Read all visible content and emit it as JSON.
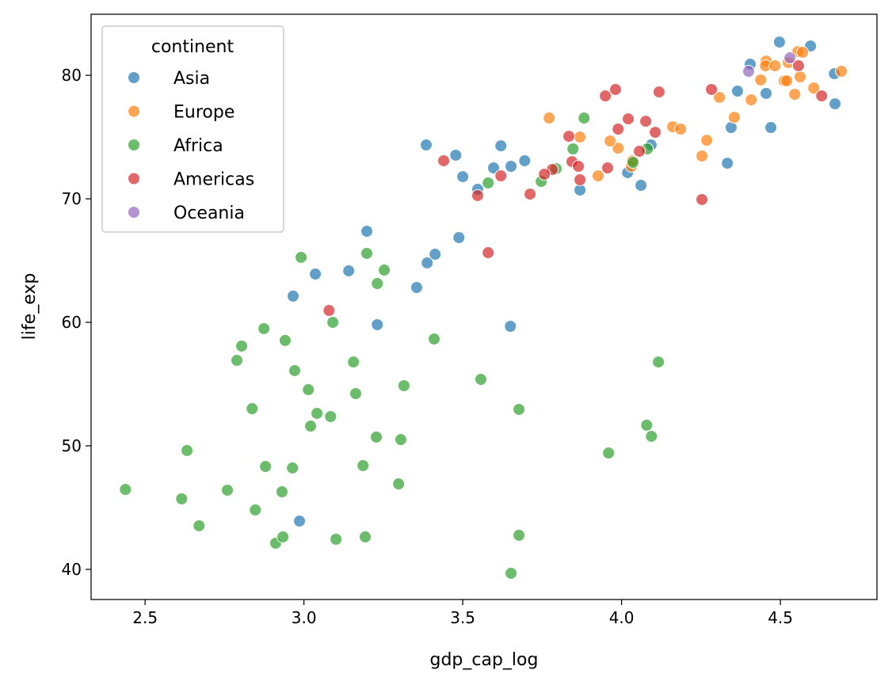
{
  "chart_data": {
    "type": "scatter",
    "xlabel": "gdp_cap_log",
    "ylabel": "life_exp",
    "xlim": [
      2.33,
      4.804
    ],
    "ylim": [
      37.56,
      84.94
    ],
    "xticks": [
      2.5,
      3.0,
      3.5,
      4.0,
      4.5
    ],
    "xtick_labels": [
      "2.5",
      "3.0",
      "3.5",
      "4.0",
      "4.5"
    ],
    "yticks": [
      40,
      50,
      60,
      70,
      80
    ],
    "ytick_labels": [
      "40",
      "50",
      "60",
      "70",
      "80"
    ],
    "grid": false,
    "legend": {
      "title": "continent",
      "placement": "top-left"
    },
    "series": [
      {
        "name": "Asia",
        "color": "#1f77b4",
        "points": [
          [
            4.497,
            82.69
          ],
          [
            4.595,
            82.37
          ],
          [
            4.405,
            80.9
          ],
          [
            4.67,
            80.13
          ],
          [
            4.672,
            77.69
          ],
          [
            4.365,
            78.72
          ],
          [
            4.455,
            78.53
          ],
          [
            4.345,
            75.77
          ],
          [
            4.47,
            75.77
          ],
          [
            4.333,
            72.88
          ],
          [
            4.093,
            74.36
          ],
          [
            4.019,
            72.12
          ],
          [
            4.061,
            71.09
          ],
          [
            3.869,
            70.71
          ],
          [
            3.478,
            73.53
          ],
          [
            3.62,
            74.29
          ],
          [
            3.597,
            72.5
          ],
          [
            3.652,
            72.63
          ],
          [
            3.695,
            73.08
          ],
          [
            3.5,
            71.79
          ],
          [
            3.547,
            70.77
          ],
          [
            3.385,
            74.36
          ],
          [
            3.198,
            67.37
          ],
          [
            3.036,
            63.91
          ],
          [
            2.966,
            62.12
          ],
          [
            3.141,
            64.17
          ],
          [
            3.488,
            66.86
          ],
          [
            3.388,
            64.81
          ],
          [
            3.413,
            65.51
          ],
          [
            3.355,
            62.82
          ],
          [
            3.231,
            59.81
          ],
          [
            3.65,
            59.68
          ],
          [
            2.986,
            43.91
          ]
        ]
      },
      {
        "name": "Europe",
        "color": "#ff7f0e",
        "points": [
          [
            4.555,
            81.92
          ],
          [
            4.57,
            81.86
          ],
          [
            4.455,
            81.15
          ],
          [
            4.453,
            80.77
          ],
          [
            4.483,
            80.77
          ],
          [
            4.525,
            81.03
          ],
          [
            4.692,
            80.32
          ],
          [
            4.438,
            79.62
          ],
          [
            4.512,
            79.55
          ],
          [
            4.52,
            79.55
          ],
          [
            4.562,
            79.87
          ],
          [
            4.605,
            78.97
          ],
          [
            4.545,
            78.46
          ],
          [
            4.408,
            78.01
          ],
          [
            4.308,
            78.21
          ],
          [
            4.355,
            76.6
          ],
          [
            4.268,
            74.74
          ],
          [
            4.253,
            73.46
          ],
          [
            4.161,
            75.83
          ],
          [
            4.186,
            75.64
          ],
          [
            3.989,
            74.1
          ],
          [
            3.964,
            74.68
          ],
          [
            3.869,
            75.0
          ],
          [
            3.772,
            76.54
          ],
          [
            3.926,
            71.86
          ],
          [
            4.031,
            72.63
          ],
          [
            4.034,
            73.08
          ]
        ]
      },
      {
        "name": "Africa",
        "color": "#2ca02c",
        "points": [
          [
            3.882,
            76.54
          ],
          [
            3.847,
            74.04
          ],
          [
            3.794,
            72.44
          ],
          [
            3.747,
            71.41
          ],
          [
            3.58,
            71.28
          ],
          [
            4.036,
            72.95
          ],
          [
            4.081,
            74.04
          ],
          [
            3.198,
            65.58
          ],
          [
            3.253,
            64.23
          ],
          [
            2.991,
            65.26
          ],
          [
            3.231,
            63.14
          ],
          [
            2.874,
            59.49
          ],
          [
            2.804,
            58.08
          ],
          [
            2.941,
            58.53
          ],
          [
            2.789,
            56.92
          ],
          [
            2.971,
            56.09
          ],
          [
            3.156,
            56.79
          ],
          [
            3.091,
            60.0
          ],
          [
            3.41,
            58.65
          ],
          [
            3.014,
            54.55
          ],
          [
            3.163,
            54.23
          ],
          [
            3.315,
            54.87
          ],
          [
            3.041,
            52.63
          ],
          [
            3.084,
            52.37
          ],
          [
            2.837,
            53.01
          ],
          [
            3.021,
            51.6
          ],
          [
            3.557,
            55.38
          ],
          [
            2.632,
            49.62
          ],
          [
            3.228,
            50.71
          ],
          [
            3.305,
            50.51
          ],
          [
            2.615,
            45.71
          ],
          [
            2.759,
            46.41
          ],
          [
            2.879,
            48.33
          ],
          [
            2.964,
            48.21
          ],
          [
            2.931,
            46.28
          ],
          [
            2.847,
            44.81
          ],
          [
            3.186,
            48.4
          ],
          [
            3.298,
            46.92
          ],
          [
            2.438,
            46.47
          ],
          [
            2.67,
            43.53
          ],
          [
            2.911,
            42.12
          ],
          [
            2.934,
            42.63
          ],
          [
            3.101,
            42.44
          ],
          [
            3.193,
            42.63
          ],
          [
            3.677,
            42.76
          ],
          [
            3.652,
            39.68
          ],
          [
            3.677,
            52.95
          ],
          [
            4.116,
            56.79
          ],
          [
            3.959,
            49.42
          ],
          [
            4.079,
            51.67
          ],
          [
            4.094,
            50.77
          ]
        ]
      },
      {
        "name": "Americas",
        "color": "#d62728",
        "points": [
          [
            3.981,
            78.85
          ],
          [
            3.949,
            78.33
          ],
          [
            4.118,
            78.65
          ],
          [
            4.283,
            78.85
          ],
          [
            4.557,
            80.77
          ],
          [
            4.63,
            78.33
          ],
          [
            4.021,
            76.47
          ],
          [
            4.076,
            76.28
          ],
          [
            3.989,
            75.64
          ],
          [
            4.106,
            75.38
          ],
          [
            3.834,
            75.06
          ],
          [
            4.056,
            73.85
          ],
          [
            3.956,
            72.5
          ],
          [
            3.844,
            73.01
          ],
          [
            3.864,
            72.63
          ],
          [
            3.869,
            71.54
          ],
          [
            3.782,
            72.37
          ],
          [
            3.757,
            71.99
          ],
          [
            3.62,
            71.86
          ],
          [
            3.547,
            70.26
          ],
          [
            3.712,
            70.38
          ],
          [
            4.253,
            69.94
          ],
          [
            3.44,
            73.08
          ],
          [
            3.58,
            65.64
          ],
          [
            3.079,
            60.96
          ]
        ]
      },
      {
        "name": "Oceania",
        "color": "#9467bd",
        "points": [
          [
            4.4,
            80.32
          ],
          [
            4.53,
            81.41
          ]
        ]
      }
    ]
  }
}
